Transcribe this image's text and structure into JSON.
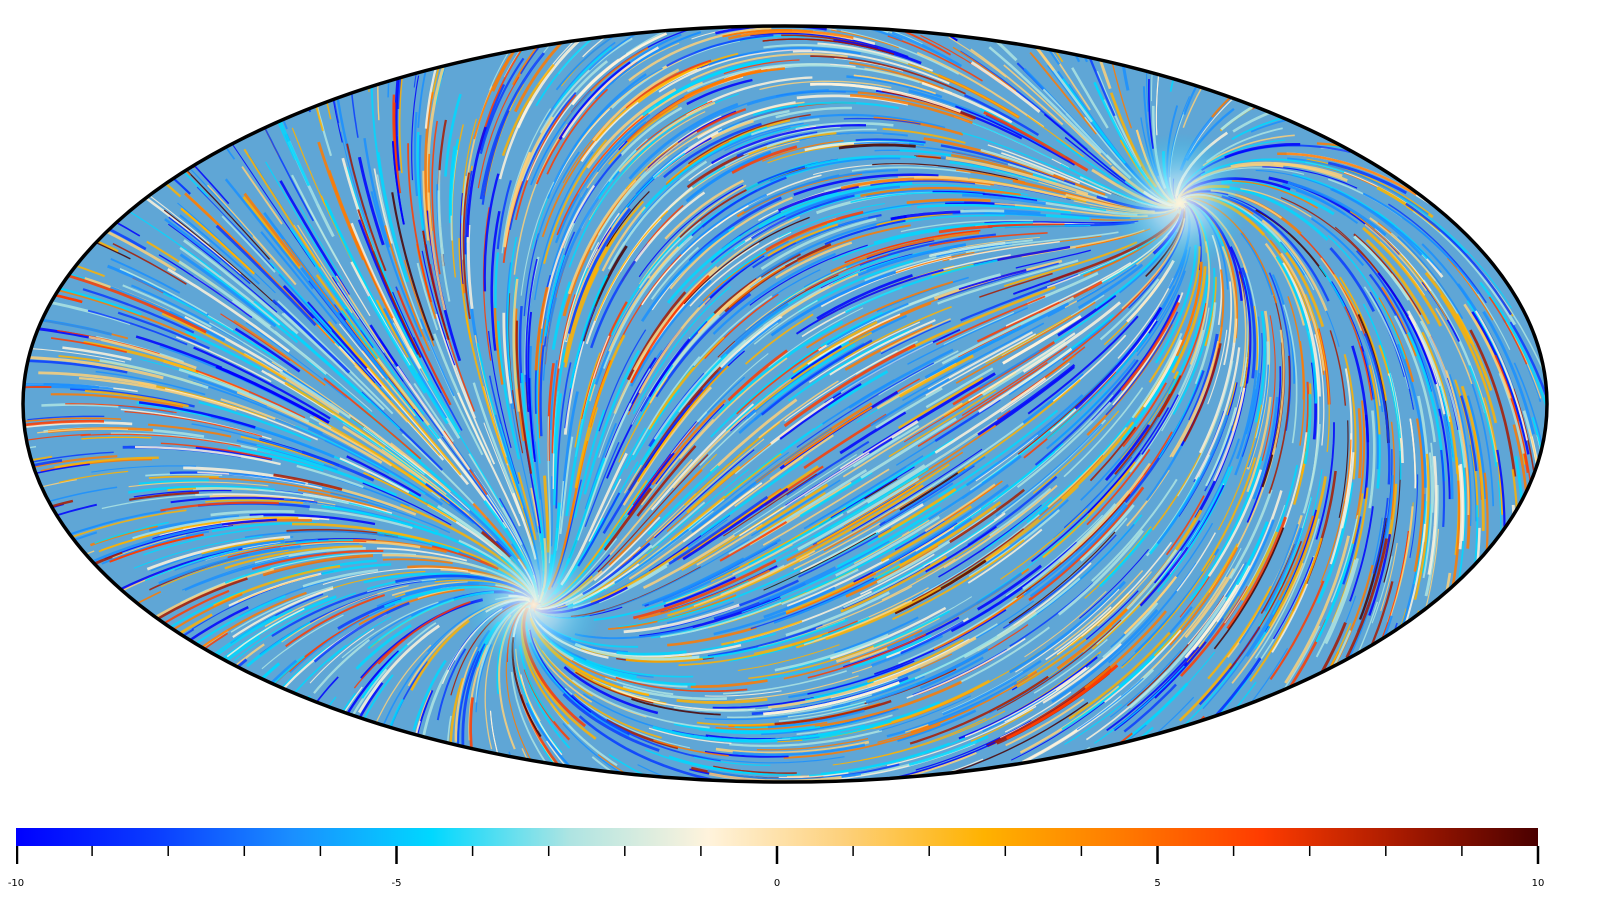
{
  "map": {
    "projection": "mollweide",
    "colormap": [
      "#0000ff",
      "#0a3cff",
      "#1a8fff",
      "#00d8ff",
      "#aee4e2",
      "#fff3dc",
      "#fdd07a",
      "#ffb200",
      "#ff7a00",
      "#ff3c00",
      "#a81a00",
      "#4a0000"
    ],
    "outline_color": "#000000",
    "poles": [
      {
        "lon": -110,
        "lat": 40
      },
      {
        "lon": 70,
        "lat": -40
      }
    ]
  },
  "colorbar": {
    "min": -10,
    "max": 10,
    "tick_labels": [
      "-10",
      "-5",
      "0",
      "5",
      "10"
    ],
    "major_ticks": [
      -10,
      -5,
      0,
      5,
      10
    ],
    "minor_ticks": [
      -9,
      -8,
      -7,
      -6,
      -4,
      -3,
      -2,
      -1,
      1,
      2,
      3,
      4,
      6,
      7,
      8,
      9
    ]
  }
}
